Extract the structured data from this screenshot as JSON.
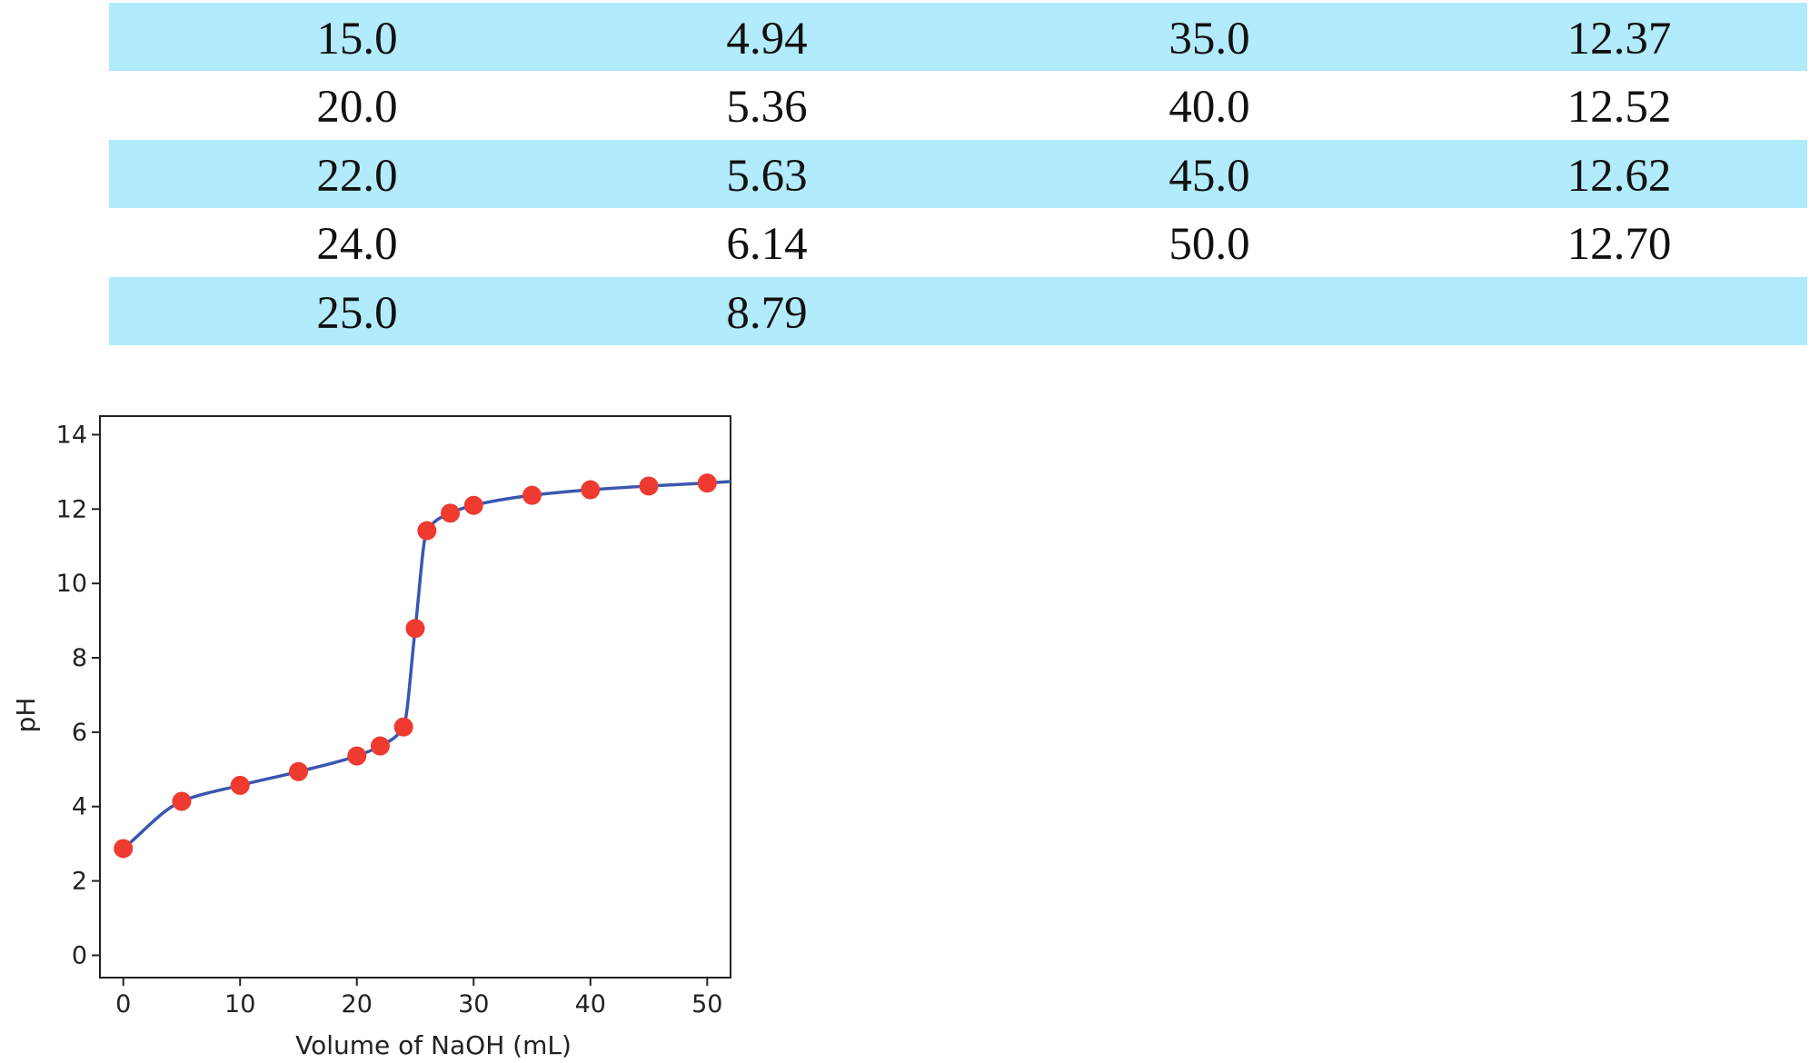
{
  "table": {
    "rows": [
      [
        "15.0",
        "4.94",
        "35.0",
        "12.37"
      ],
      [
        "20.0",
        "5.36",
        "40.0",
        "12.52"
      ],
      [
        "22.0",
        "5.63",
        "45.0",
        "12.62"
      ],
      [
        "24.0",
        "6.14",
        "50.0",
        "12.70"
      ],
      [
        "25.0",
        "8.79",
        "",
        ""
      ]
    ],
    "shade_color": "#b2ebfb"
  },
  "chart_data": {
    "type": "scatter",
    "xlabel": "Volume of NaOH (mL)",
    "ylabel": "pH",
    "xlim": [
      -2,
      52
    ],
    "ylim": [
      -0.6,
      14.5
    ],
    "xticks": [
      0,
      10,
      20,
      30,
      40,
      50
    ],
    "yticks": [
      0,
      2,
      4,
      6,
      8,
      10,
      12,
      14
    ],
    "grid": false,
    "legend": "none",
    "point_color": "#ee3a2f",
    "curve_color": "#3a57b0",
    "points": [
      {
        "x": 0,
        "y": 2.87
      },
      {
        "x": 5,
        "y": 4.14
      },
      {
        "x": 10,
        "y": 4.57
      },
      {
        "x": 15,
        "y": 4.94
      },
      {
        "x": 20,
        "y": 5.36
      },
      {
        "x": 22,
        "y": 5.63
      },
      {
        "x": 24,
        "y": 6.14
      },
      {
        "x": 25,
        "y": 8.79
      },
      {
        "x": 26,
        "y": 11.42
      },
      {
        "x": 28,
        "y": 11.89
      },
      {
        "x": 30,
        "y": 12.1
      },
      {
        "x": 35,
        "y": 12.37
      },
      {
        "x": 40,
        "y": 12.52
      },
      {
        "x": 45,
        "y": 12.62
      },
      {
        "x": 50,
        "y": 12.7
      }
    ]
  }
}
